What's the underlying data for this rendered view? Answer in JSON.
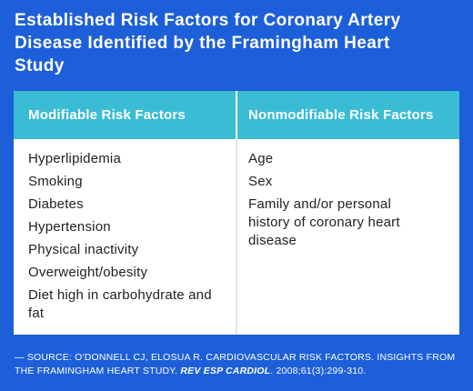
{
  "title": "Established Risk Factors for Coronary Artery Disease Identified by the Framingham Heart Study",
  "table": {
    "headers": [
      "Modifiable Risk Factors",
      "Nonmodifiable Risk Factors"
    ],
    "columns": [
      [
        "Hyperlipidemia",
        "Smoking",
        "Diabetes",
        "Hypertension",
        "Physical inactivity",
        "Overweight/obesity",
        "Diet high in carbohydrate and fat"
      ],
      [
        "Age",
        "Sex",
        "Family and/or personal history of coronary heart disease"
      ]
    ]
  },
  "source": [
    "— SOURCE: O'DONNELL CJ, ELOSUA R. CARDIOVASCULAR RISK FACTORS. INSIGHTS FROM THE FRAMINGHAM HEART STUDY. ",
    "REV ESP CARDIOL",
    ". 2008;61(3):299-310."
  ]
}
